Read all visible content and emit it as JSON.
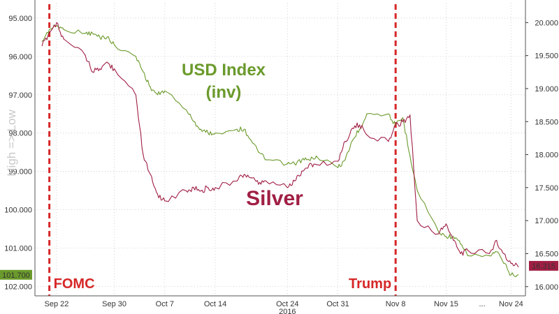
{
  "chart_data": {
    "type": "line",
    "title": "",
    "y_axis_title": "High => Low",
    "x_year_label": "2016",
    "x_tick_labels": [
      "Sep 22",
      "Sep 30",
      "Oct 7",
      "Oct 14",
      "Oct 24",
      "Oct 31",
      "Nov 8",
      "Nov 15",
      "...",
      "Nov 24"
    ],
    "left_axis": {
      "inverted": true,
      "range": [
        95.0,
        102.0
      ],
      "ticks": [
        "95.000",
        "96.000",
        "97.000",
        "98.000",
        "99.000",
        "100.000",
        "101.000",
        "102.000"
      ]
    },
    "right_axis": {
      "range": [
        16.0,
        20.0
      ],
      "ticks": [
        "20.000",
        "19.500",
        "19.000",
        "18.500",
        "18.000",
        "17.500",
        "17.000",
        "16.500",
        "16.000"
      ]
    },
    "last_values": {
      "usd": "101.700",
      "silver": "16.315"
    },
    "annotations": [
      {
        "text": "FOMC",
        "date": "Sep 21",
        "color": "#d62728"
      },
      {
        "text": "Trump",
        "date": "Nov 8",
        "color": "#d62728"
      }
    ],
    "series_labels": {
      "usd_line1": "USD Index",
      "usd_line2": "(inv)",
      "silver": "Silver"
    },
    "colors": {
      "usd": "#6b9a2c",
      "silver": "#a01f44",
      "event": "#d62728",
      "grid": "#c8c8c8"
    },
    "series": [
      {
        "name": "USD Index",
        "axis": "left",
        "x": [
          "Sep 20",
          "Sep 21",
          "Sep 22",
          "Sep 23",
          "Sep 26",
          "Sep 27",
          "Sep 28",
          "Sep 29",
          "Sep 30",
          "Oct 3",
          "Oct 4",
          "Oct 5",
          "Oct 6",
          "Oct 7",
          "Oct 10",
          "Oct 11",
          "Oct 12",
          "Oct 13",
          "Oct 14",
          "Oct 17",
          "Oct 18",
          "Oct 19",
          "Oct 20",
          "Oct 21",
          "Oct 24",
          "Oct 25",
          "Oct 26",
          "Oct 27",
          "Oct 28",
          "Oct 31",
          "Nov 1",
          "Nov 2",
          "Nov 3",
          "Nov 4",
          "Nov 7",
          "Nov 8",
          "Nov 9",
          "Nov 10",
          "Nov 11",
          "Nov 14",
          "Nov 15",
          "Nov 16",
          "Nov 17",
          "Nov 18",
          "Nov 21",
          "Nov 22",
          "Nov 23",
          "Nov 24",
          "Nov 25"
        ],
        "values": [
          95.6,
          95.3,
          95.2,
          95.3,
          95.4,
          95.4,
          95.5,
          95.5,
          95.7,
          96.0,
          96.4,
          96.8,
          97.0,
          96.9,
          97.4,
          97.7,
          97.9,
          98.0,
          98.0,
          97.9,
          97.9,
          98.2,
          98.5,
          98.7,
          98.8,
          98.8,
          98.7,
          98.7,
          98.6,
          98.9,
          98.7,
          98.2,
          97.9,
          97.5,
          97.5,
          97.8,
          97.6,
          98.6,
          99.5,
          100.6,
          100.7,
          100.7,
          100.9,
          101.2,
          101.2,
          101.1,
          101.4,
          101.7,
          101.7
        ]
      },
      {
        "name": "Silver",
        "axis": "right",
        "x": [
          "Sep 20",
          "Sep 21",
          "Sep 22",
          "Sep 23",
          "Sep 26",
          "Sep 27",
          "Sep 28",
          "Sep 29",
          "Sep 30",
          "Oct 3",
          "Oct 4",
          "Oct 5",
          "Oct 6",
          "Oct 7",
          "Oct 10",
          "Oct 11",
          "Oct 12",
          "Oct 13",
          "Oct 14",
          "Oct 17",
          "Oct 18",
          "Oct 19",
          "Oct 20",
          "Oct 21",
          "Oct 24",
          "Oct 25",
          "Oct 26",
          "Oct 27",
          "Oct 28",
          "Oct 31",
          "Nov 1",
          "Nov 2",
          "Nov 3",
          "Nov 4",
          "Nov 7",
          "Nov 8",
          "Nov 9",
          "Nov 10",
          "Nov 11",
          "Nov 14",
          "Nov 15",
          "Nov 16",
          "Nov 17",
          "Nov 18",
          "Nov 21",
          "Nov 22",
          "Nov 23",
          "Nov 24",
          "Nov 25"
        ],
        "values": [
          19.65,
          19.85,
          20.0,
          19.75,
          19.5,
          19.25,
          19.3,
          19.4,
          19.3,
          18.9,
          18.0,
          17.7,
          17.4,
          17.3,
          17.45,
          17.5,
          17.45,
          17.5,
          17.5,
          17.6,
          17.7,
          17.65,
          17.55,
          17.6,
          17.5,
          17.6,
          17.75,
          17.85,
          17.85,
          17.9,
          18.2,
          18.4,
          18.45,
          18.3,
          18.2,
          18.45,
          18.5,
          18.6,
          17.0,
          16.8,
          16.95,
          16.7,
          16.5,
          16.55,
          16.5,
          16.7,
          16.5,
          16.35,
          16.3
        ]
      }
    ]
  }
}
